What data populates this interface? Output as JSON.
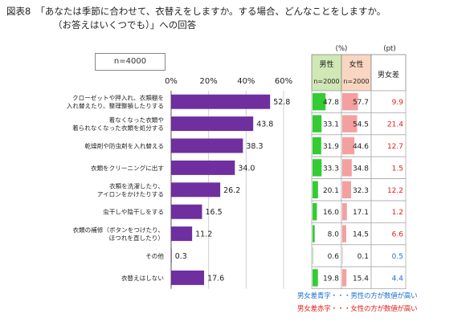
{
  "title": {
    "number": "図表8",
    "line1": "「あなたは季節に合わせて、衣替えをしますか。する場合、どんなことをしますか。",
    "line2": "（お答えはいくつでも）」への回答"
  },
  "sample_label": "n=4000",
  "notes": {
    "blue": "男女差青字・・・男性の方が数値が高い",
    "red": "男女差赤字・・・女性の方が数値が高い"
  },
  "colors": {
    "bar": "#6f2f9f",
    "male_bar": "#33cc33",
    "female_bar": "#f4a0a0",
    "male_header": "#cfe8b5",
    "female_header": "#f9d6c2",
    "diff_blue": "#1f6fd0",
    "diff_red": "#e0201a"
  },
  "chart_data": {
    "type": "bar",
    "orientation": "horizontal",
    "xlim": [
      0,
      60
    ],
    "xticks": [
      "0%",
      "20%",
      "40%",
      "60%"
    ],
    "grid": true,
    "categories": [
      "クローゼットや押入れ、衣類棚を入れ替えたり、整理整頓したりする",
      "着なくなった衣類や着られなくなった衣類を処分する",
      "乾燥剤や防虫剤を入れ替える",
      "衣類をクリーニングに出す",
      "衣類を洗濯したり、アイロンをかけたりする",
      "虫干しや陰干しをする",
      "衣類の補修（ボタンをつけたり、ほつれを直したり）",
      "その他",
      "衣替えはしない"
    ],
    "label_lines": [
      [
        "クローゼットや押入れ、衣類棚を",
        "入れ替えたり、整理整頓したりする"
      ],
      [
        "着なくなった衣類や",
        "着られなくなった衣類を処分する"
      ],
      [
        "乾燥剤や防虫剤を入れ替える"
      ],
      [
        "衣類をクリーニングに出す"
      ],
      [
        "衣類を洗濯したり、",
        "アイロンをかけたりする"
      ],
      [
        "虫干しや陰干しをする"
      ],
      [
        "衣類の補修（ボタンをつけたり、",
        "ほつれを直したり）"
      ],
      [
        "その他"
      ],
      [
        "衣替えはしない"
      ]
    ],
    "values": [
      52.8,
      43.8,
      38.3,
      34.0,
      26.2,
      16.5,
      11.2,
      0.3,
      17.6
    ],
    "value_labels": [
      "52.8",
      "43.8",
      "38.3",
      "34.0",
      "26.2",
      "16.5",
      "11.2",
      "0.3",
      "17.6"
    ],
    "table": {
      "unit_left": "(%)",
      "unit_right": "(pt)",
      "male_header": "男性",
      "male_n": "n=2000",
      "female_header": "女性",
      "female_n": "n=2000",
      "diff_header": "男女差",
      "male": [
        "47.8",
        "33.1",
        "31.9",
        "33.3",
        "20.1",
        "16.0",
        "8.0",
        "0.6",
        "19.8"
      ],
      "female": [
        "57.7",
        "54.5",
        "44.6",
        "34.8",
        "32.3",
        "17.1",
        "14.5",
        "0.1",
        "15.4"
      ],
      "diff": [
        "9.9",
        "21.4",
        "12.7",
        "1.5",
        "12.2",
        "1.2",
        "6.6",
        "0.5",
        "4.4"
      ],
      "diff_color": [
        "red",
        "red",
        "red",
        "red",
        "red",
        "red",
        "red",
        "blue",
        "blue"
      ]
    }
  }
}
